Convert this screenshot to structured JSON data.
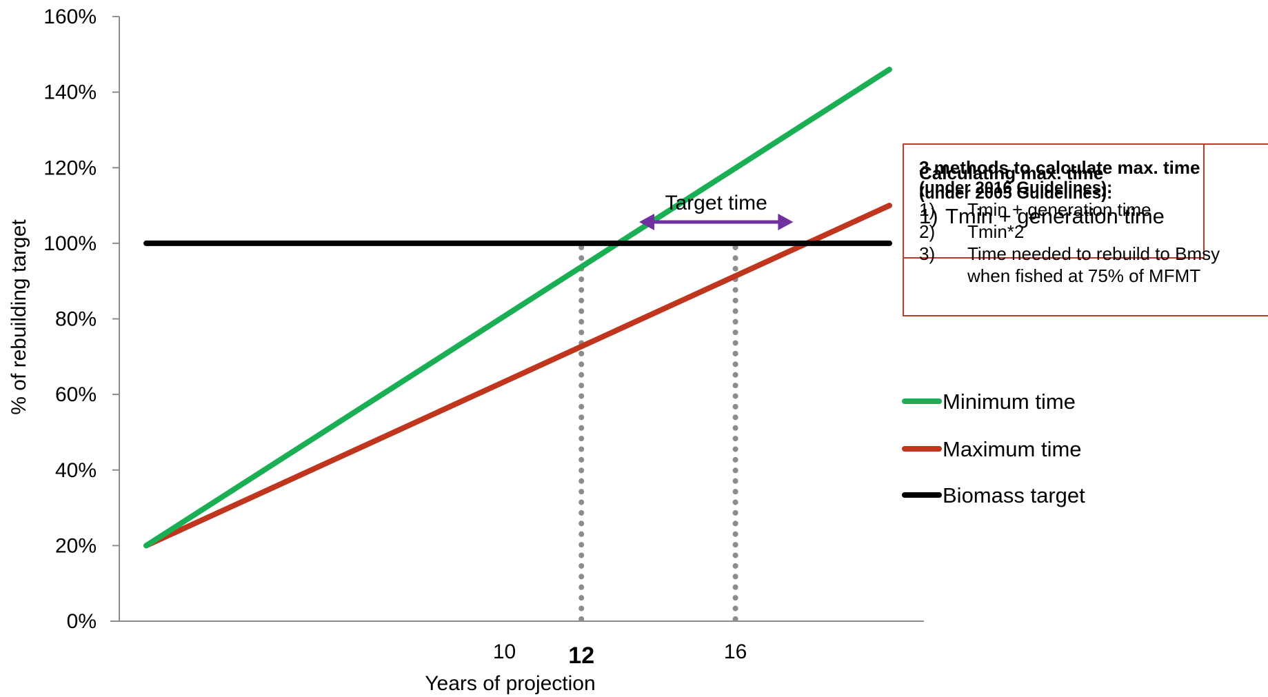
{
  "chart_data": {
    "type": "line",
    "xlabel": "Years of projection",
    "ylabel": "% of rebuilding target",
    "y_ticks": [
      "0%",
      "20%",
      "40%",
      "60%",
      "80%",
      "100%",
      "120%",
      "140%",
      "160%"
    ],
    "ylim": [
      0,
      160
    ],
    "xlim": [
      0,
      20
    ],
    "x_ticks": [
      {
        "value": 10,
        "label": "10",
        "bold": false
      },
      {
        "value": 12,
        "label": "12",
        "bold": true
      },
      {
        "value": 16,
        "label": "16",
        "bold": false
      }
    ],
    "grid": false,
    "series": [
      {
        "name": "Minimum time",
        "color": "#1aaf54",
        "x": [
          0.7,
          20
        ],
        "y": [
          20,
          146
        ]
      },
      {
        "name": "Maximum time",
        "color": "#c0351e",
        "x": [
          0.7,
          20
        ],
        "y": [
          20,
          110
        ]
      },
      {
        "name": "Biomass target",
        "color": "#000000",
        "x": [
          0.7,
          20
        ],
        "y": [
          100,
          100
        ]
      }
    ],
    "legend_position": "right",
    "markers": {
      "dotted_lines_x": [
        12,
        16
      ],
      "intersection_y": 100
    },
    "annotation": {
      "text": "Target time",
      "arrow_color": "#7030a0",
      "x_from": 13.5,
      "x_to": 17.5,
      "y": 106
    }
  },
  "boxes": {
    "box_2005": {
      "title": "Calculating max. time",
      "subtitle": "(under 2005 Guidelines):",
      "items": [
        {
          "num": "1)",
          "text": "Tmin + generation time"
        }
      ]
    },
    "box_2016": {
      "title": "3 methods to calculate max. time",
      "subtitle": "(under 2016 Guidelines):",
      "items": [
        {
          "num": "1)",
          "text": "Tmin + generation time"
        },
        {
          "num": "2)",
          "text": "Tmin*2"
        },
        {
          "num": "3)",
          "text": "Time needed to rebuild to Bmsy when fished at 75% of MFMT"
        }
      ]
    }
  }
}
